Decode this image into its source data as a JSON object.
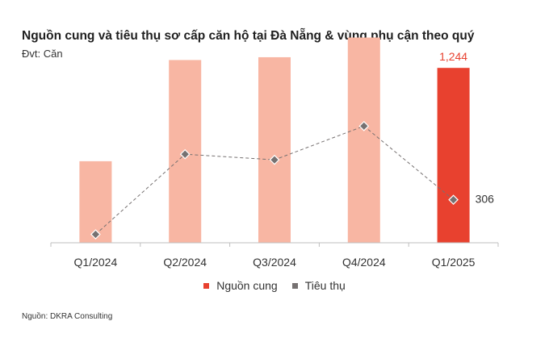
{
  "header": {
    "title": "Nguồn cung và tiêu thụ sơ cấp căn hộ tại Đà Nẵng & vùng phụ cận theo quý",
    "unit": "Đvt: Căn"
  },
  "footer": {
    "source": "Nguồn: DKRA Consulting"
  },
  "colors": {
    "supply": "#F8B6A3",
    "supply_highlight": "#E8412F",
    "sales": "#767171",
    "axis": "#BFBFBF",
    "label": "#333333"
  },
  "chart_data": {
    "type": "bar",
    "title": "Nguồn cung và tiêu thụ sơ cấp căn hộ tại Đà Nẵng & vùng phụ cận theo quý",
    "ylabel": "Căn",
    "xlabel": "",
    "ylim": [
      0,
      1400
    ],
    "grid": false,
    "legend_position": "bottom",
    "categories": [
      "Q1/2024",
      "Q2/2024",
      "Q3/2024",
      "Q4/2024",
      "Q1/2025"
    ],
    "series": [
      {
        "name": "Nguồn cung",
        "type": "bar",
        "values": [
          580,
          1300,
          1320,
          1460,
          1244
        ]
      },
      {
        "name": "Tiêu thụ",
        "type": "line",
        "values": [
          60,
          630,
          590,
          830,
          306
        ]
      }
    ],
    "data_labels": [
      {
        "series": "Nguồn cung",
        "category": "Q1/2025",
        "text": "1,244"
      },
      {
        "series": "Tiêu thụ",
        "category": "Q1/2025",
        "text": "306"
      }
    ]
  }
}
